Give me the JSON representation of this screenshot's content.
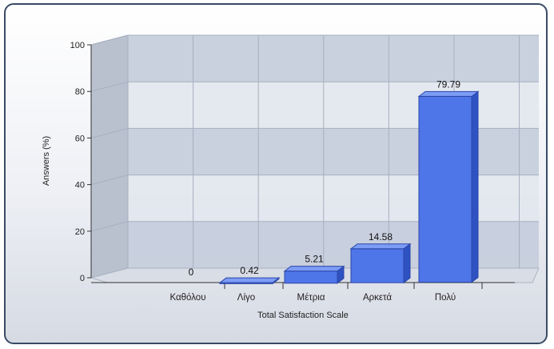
{
  "chart_data": {
    "type": "bar",
    "categories": [
      "Καθόλου",
      "Λίγο",
      "Μέτρια",
      "Αρκετά",
      "Πολύ"
    ],
    "series": [
      {
        "values": [
          0,
          0.42,
          5.21,
          14.58,
          79.79
        ]
      }
    ],
    "data_labels": [
      "0",
      "0.42",
      "5.21",
      "14.58",
      "79.79"
    ],
    "xlabel": "Total Satisfaction Scale",
    "ylabel": "Answers (%)",
    "ylim": [
      0,
      100
    ],
    "yticks": [
      "0",
      "20",
      "40",
      "60",
      "80",
      "100"
    ],
    "grid": true,
    "style": "3d",
    "colors": {
      "bar": "#4f76e8",
      "bar_top": "#7d9cf5",
      "bar_side": "#2f52c2",
      "wall_band_dark": "#c6cedc",
      "wall_band_light": "#e3e7ee",
      "frame_border": "#3a4a66"
    }
  }
}
